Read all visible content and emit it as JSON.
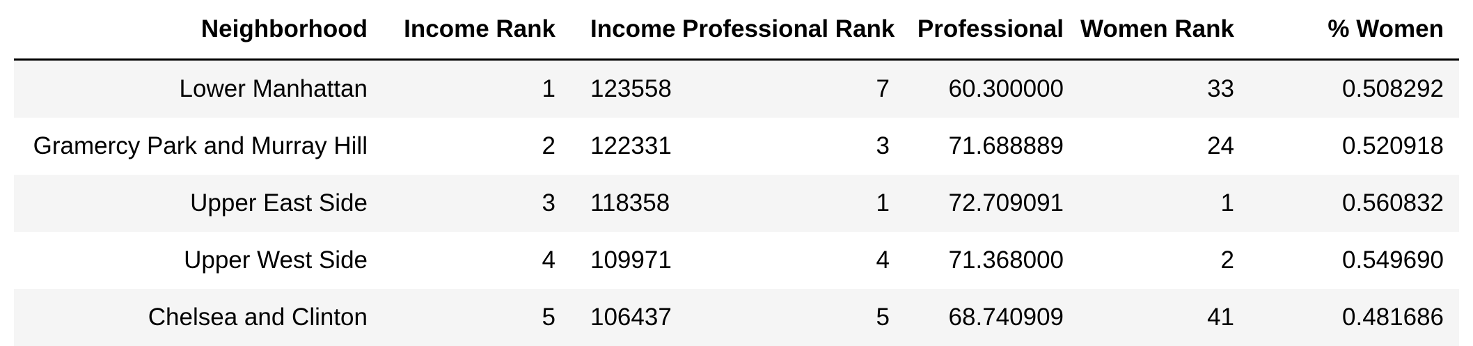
{
  "table": {
    "columns": [
      "Neighborhood",
      "Income Rank",
      "Income",
      "Professional Rank",
      "Professional",
      "Women Rank",
      "% Women"
    ],
    "rows": [
      [
        "Lower Manhattan",
        "1",
        "123558",
        "7",
        "60.300000",
        "33",
        "0.508292"
      ],
      [
        "Gramercy Park and Murray Hill",
        "2",
        "122331",
        "3",
        "71.688889",
        "24",
        "0.520918"
      ],
      [
        "Upper East Side",
        "3",
        "118358",
        "1",
        "72.709091",
        "1",
        "0.560832"
      ],
      [
        "Upper West Side",
        "4",
        "109971",
        "4",
        "71.368000",
        "2",
        "0.549690"
      ],
      [
        "Chelsea and Clinton",
        "5",
        "106437",
        "5",
        "68.740909",
        "41",
        "0.481686"
      ]
    ]
  },
  "colors": {
    "stripe": "#f5f5f5",
    "header_rule": "#000000",
    "text": "#000000"
  }
}
